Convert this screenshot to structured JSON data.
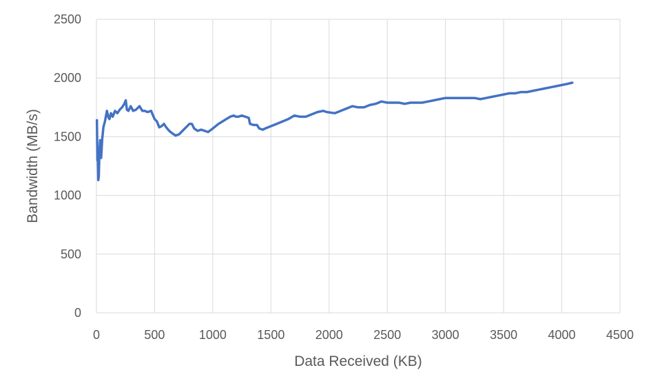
{
  "chart_data": {
    "type": "line",
    "title": "",
    "xlabel": "Data Received (KB)",
    "ylabel": "Bandwidth (MB/s)",
    "xlim": [
      0,
      4500
    ],
    "ylim": [
      0,
      2500
    ],
    "x_ticks": [
      0,
      500,
      1000,
      1500,
      2000,
      2500,
      3000,
      3500,
      4000,
      4500
    ],
    "y_ticks": [
      0,
      500,
      1000,
      1500,
      2000,
      2500
    ],
    "grid": true,
    "legend": "none",
    "colors": {
      "series": "#4472c4",
      "grid": "#d9d9d9",
      "text": "#595959"
    },
    "series": [
      {
        "x": [
          4,
          8,
          12,
          16,
          20,
          26,
          32,
          40,
          50,
          60,
          75,
          90,
          105,
          112,
          125,
          140,
          160,
          180,
          200,
          220,
          240,
          252,
          262,
          275,
          295,
          315,
          340,
          370,
          395,
          415,
          440,
          470,
          500,
          520,
          540,
          560,
          580,
          600,
          625,
          650,
          680,
          710,
          740,
          770,
          800,
          820,
          840,
          870,
          900,
          930,
          960,
          1000,
          1050,
          1100,
          1150,
          1180,
          1200,
          1220,
          1250,
          1280,
          1310,
          1320,
          1350,
          1380,
          1400,
          1430,
          1450,
          1500,
          1550,
          1600,
          1650,
          1700,
          1750,
          1800,
          1850,
          1900,
          1950,
          1980,
          2050,
          2100,
          2150,
          2200,
          2250,
          2300,
          2350,
          2400,
          2450,
          2500,
          2550,
          2600,
          2650,
          2700,
          2750,
          2800,
          2850,
          2900,
          2950,
          3000,
          3050,
          3100,
          3150,
          3200,
          3250,
          3300,
          3350,
          3400,
          3450,
          3500,
          3550,
          3600,
          3650,
          3700,
          3750,
          3800,
          3850,
          3900,
          3950,
          4000,
          4050,
          4090
        ],
        "y": [
          1640,
          1300,
          1350,
          1130,
          1160,
          1380,
          1470,
          1320,
          1480,
          1580,
          1640,
          1720,
          1660,
          1650,
          1700,
          1670,
          1720,
          1700,
          1730,
          1750,
          1780,
          1810,
          1730,
          1720,
          1760,
          1720,
          1730,
          1760,
          1720,
          1720,
          1710,
          1720,
          1650,
          1630,
          1580,
          1590,
          1610,
          1580,
          1550,
          1530,
          1510,
          1520,
          1550,
          1580,
          1610,
          1610,
          1570,
          1550,
          1560,
          1550,
          1540,
          1570,
          1610,
          1640,
          1670,
          1680,
          1670,
          1670,
          1680,
          1670,
          1660,
          1610,
          1600,
          1600,
          1570,
          1560,
          1570,
          1590,
          1610,
          1630,
          1650,
          1680,
          1670,
          1670,
          1690,
          1710,
          1720,
          1710,
          1700,
          1720,
          1740,
          1760,
          1750,
          1750,
          1770,
          1780,
          1800,
          1790,
          1790,
          1790,
          1780,
          1790,
          1790,
          1790,
          1800,
          1810,
          1820,
          1830,
          1830,
          1830,
          1830,
          1830,
          1830,
          1820,
          1830,
          1840,
          1850,
          1860,
          1870,
          1870,
          1880,
          1880,
          1890,
          1900,
          1910,
          1920,
          1930,
          1940,
          1950,
          1960
        ]
      }
    ]
  }
}
